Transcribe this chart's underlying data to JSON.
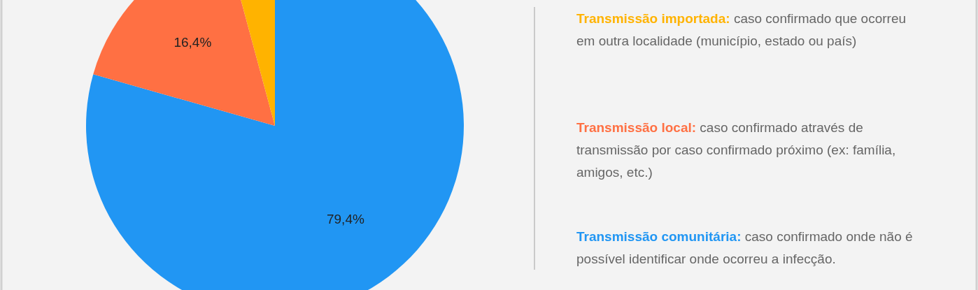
{
  "chart_data": {
    "type": "pie",
    "categories": [
      null,
      null,
      null
    ],
    "values": [
      79.4,
      16.4,
      4.2
    ],
    "colors": [
      "#2196f3",
      "#ff7043",
      "#ffb300"
    ],
    "value_labels": [
      "79,4%",
      "16,4%",
      null
    ],
    "annotations": [
      "Transmissão comunitária: caso confirmado onde não é possível identificar onde ocorreu a infecção.",
      "Transmissão local: caso confirmado através de transmissão por caso confirmado próximo (ex: família, amigos, etc.)",
      "Transmissão importada: caso confirmado que ocorreu em outra localidade (município, estado ou país)"
    ]
  }
}
